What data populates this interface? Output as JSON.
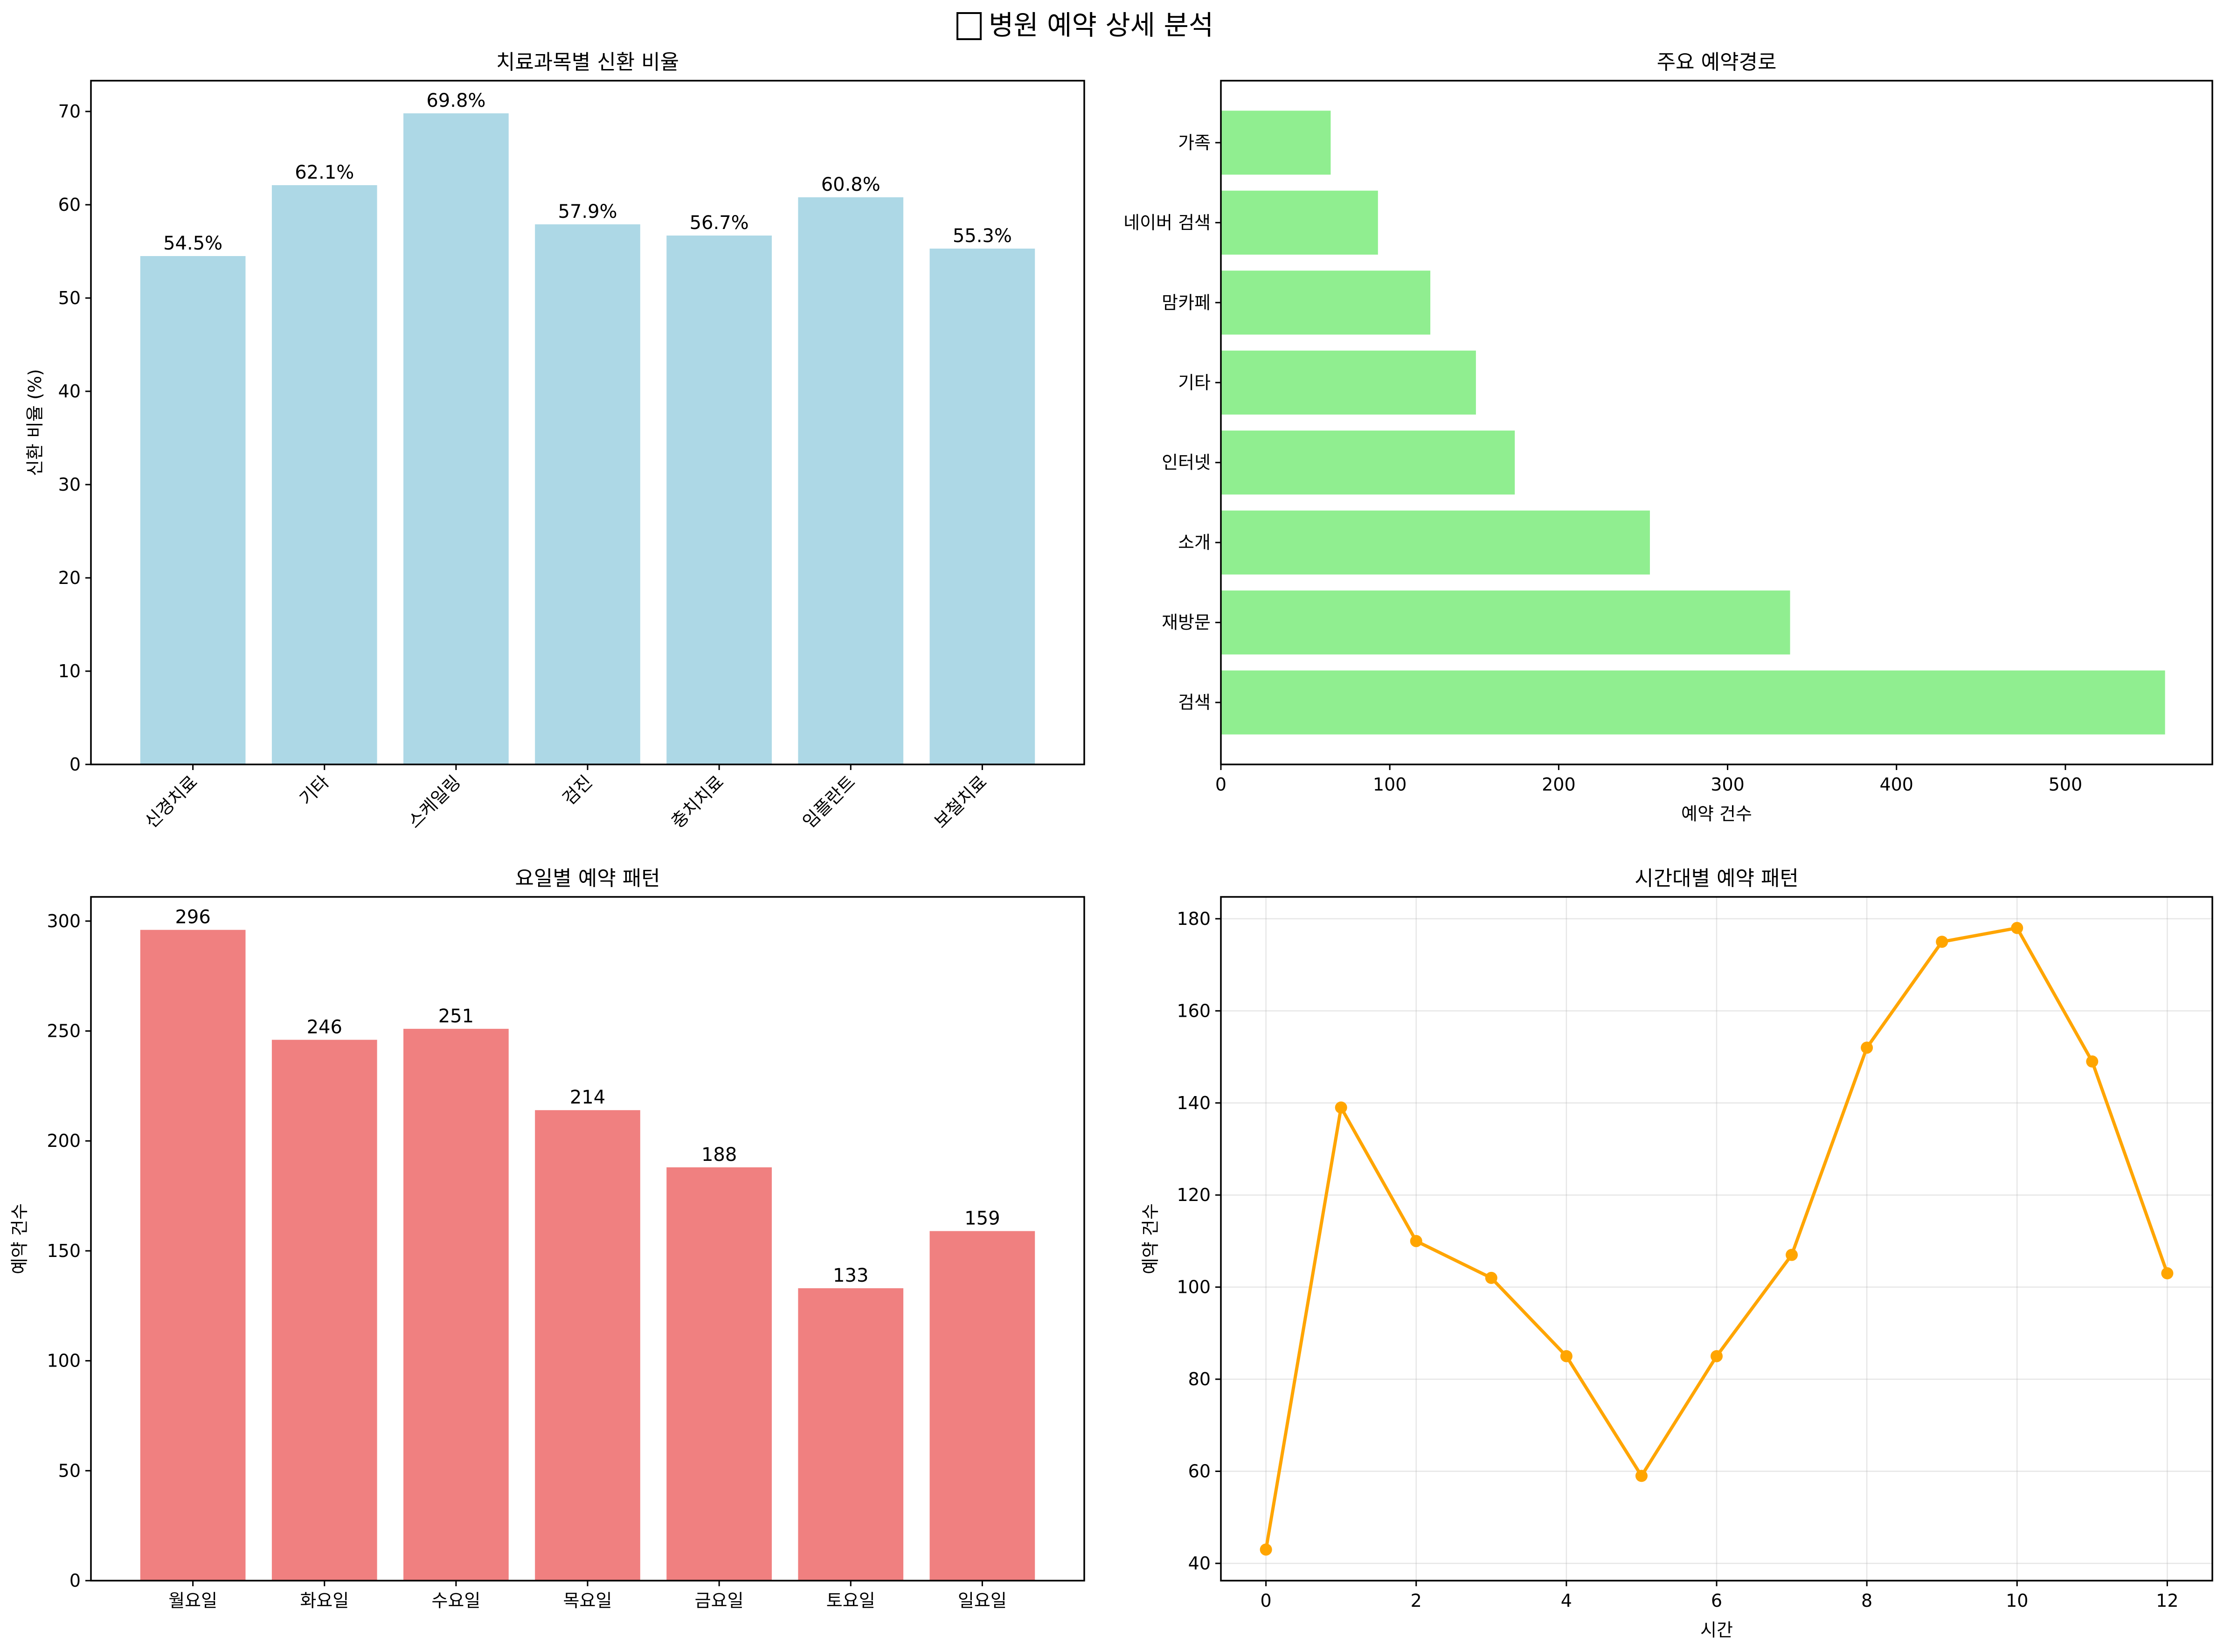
{
  "figure": {
    "title": "병원 예약 상세 분석",
    "title_icon": "empty-box-glyph-icon"
  },
  "chart_data": [
    {
      "type": "bar",
      "title": "치료과목별 신환 비율",
      "xlabel": "",
      "ylabel": "신환 비율 (%)",
      "categories": [
        "신경치료",
        "기타",
        "스케일링",
        "검진",
        "충치치료",
        "임플란트",
        "보철치료"
      ],
      "values": [
        54.5,
        62.1,
        69.8,
        57.9,
        56.7,
        60.8,
        55.3
      ],
      "data_labels": [
        "54.5%",
        "62.1%",
        "69.8%",
        "57.9%",
        "56.7%",
        "60.8%",
        "55.3%"
      ],
      "ylim": [
        0,
        73.3
      ],
      "yticks": [
        0,
        10,
        20,
        30,
        40,
        50,
        60,
        70
      ],
      "color": "#add8e6",
      "xtick_rotation": 45,
      "grid": false
    },
    {
      "type": "barh",
      "title": "주요 예약경로",
      "xlabel": "예약 건수",
      "ylabel": "",
      "categories": [
        "검색",
        "재방문",
        "소개",
        "인터넷",
        "기타",
        "맘카페",
        "네이버 검색",
        "가족"
      ],
      "values": [
        559,
        337,
        254,
        174,
        151,
        124,
        93,
        65
      ],
      "xlim": [
        0,
        587
      ],
      "xticks": [
        0,
        100,
        200,
        300,
        400,
        500
      ],
      "color": "#90ee90",
      "grid": false
    },
    {
      "type": "bar",
      "title": "요일별 예약 패턴",
      "xlabel": "",
      "ylabel": "예약 건수",
      "categories": [
        "월요일",
        "화요일",
        "수요일",
        "목요일",
        "금요일",
        "토요일",
        "일요일"
      ],
      "values": [
        296,
        246,
        251,
        214,
        188,
        133,
        159
      ],
      "data_labels": [
        "296",
        "246",
        "251",
        "214",
        "188",
        "133",
        "159"
      ],
      "ylim": [
        0,
        311
      ],
      "yticks": [
        0,
        50,
        100,
        150,
        200,
        250,
        300
      ],
      "color": "#f08080",
      "grid": false
    },
    {
      "type": "line",
      "title": "시간대별 예약 패턴",
      "xlabel": "시간",
      "ylabel": "예약 건수",
      "x": [
        0,
        1,
        2,
        3,
        4,
        5,
        6,
        7,
        8,
        9,
        10,
        11,
        12
      ],
      "y": [
        43,
        139,
        110,
        102,
        85,
        59,
        85,
        107,
        152,
        175,
        178,
        149,
        103
      ],
      "xlim": [
        -0.6,
        12.6
      ],
      "ylim": [
        36.25,
        184.75
      ],
      "xticks": [
        0,
        2,
        4,
        6,
        8,
        10,
        12
      ],
      "yticks": [
        40,
        60,
        80,
        100,
        120,
        140,
        160,
        180
      ],
      "color": "#ffa500",
      "marker": "circle",
      "grid": true
    }
  ]
}
